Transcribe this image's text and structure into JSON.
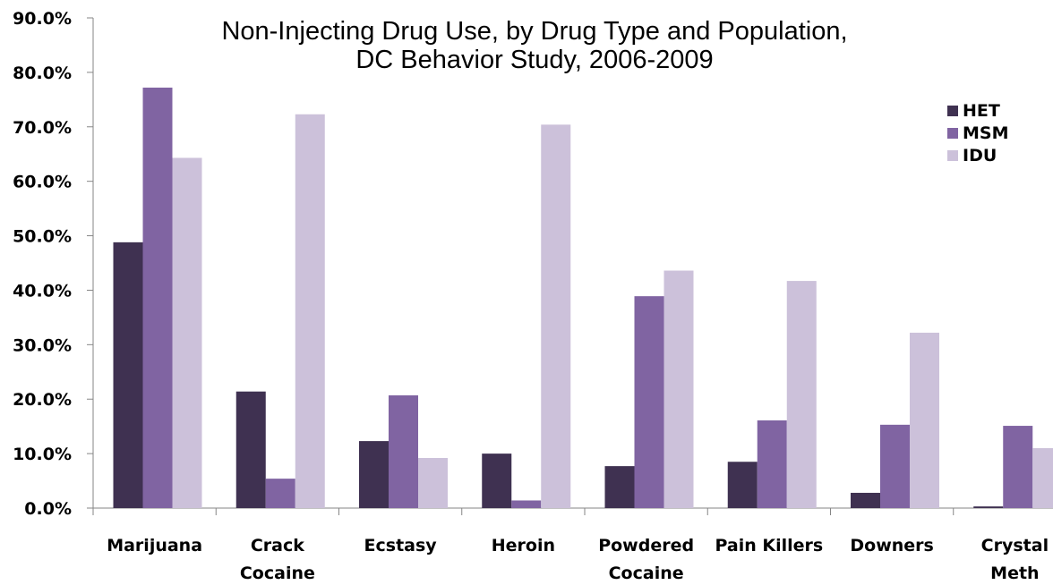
{
  "chart_data": {
    "type": "bar",
    "title": [
      "Non-Injecting Drug Use, by Drug Type and Population,",
      "DC Behavior Study, 2006-2009"
    ],
    "categories": [
      [
        "Marijuana"
      ],
      [
        "Crack",
        "Cocaine"
      ],
      [
        "Ecstasy"
      ],
      [
        "Heroin"
      ],
      [
        "Powdered",
        "Cocaine"
      ],
      [
        "Pain Killers"
      ],
      [
        "Downers"
      ],
      [
        "Crystal",
        "Meth"
      ]
    ],
    "series": [
      {
        "name": "HET",
        "color": "#3f3151",
        "values": [
          48.8,
          21.4,
          12.3,
          10.0,
          7.7,
          8.5,
          2.8,
          0.3
        ]
      },
      {
        "name": "MSM",
        "color": "#8064a2",
        "values": [
          77.2,
          5.4,
          20.7,
          1.4,
          38.9,
          16.1,
          15.3,
          15.1
        ]
      },
      {
        "name": "IDU",
        "color": "#ccc1da",
        "values": [
          64.3,
          72.3,
          9.2,
          70.4,
          43.6,
          41.7,
          32.2,
          11.0
        ]
      }
    ],
    "yticks": [
      "0.0%",
      "10.0%",
      "20.0%",
      "30.0%",
      "40.0%",
      "50.0%",
      "60.0%",
      "70.0%",
      "80.0%",
      "90.0%"
    ],
    "ylim": [
      0,
      90
    ],
    "xlabel": "",
    "ylabel": "",
    "grid": false,
    "legend": "top-right"
  }
}
